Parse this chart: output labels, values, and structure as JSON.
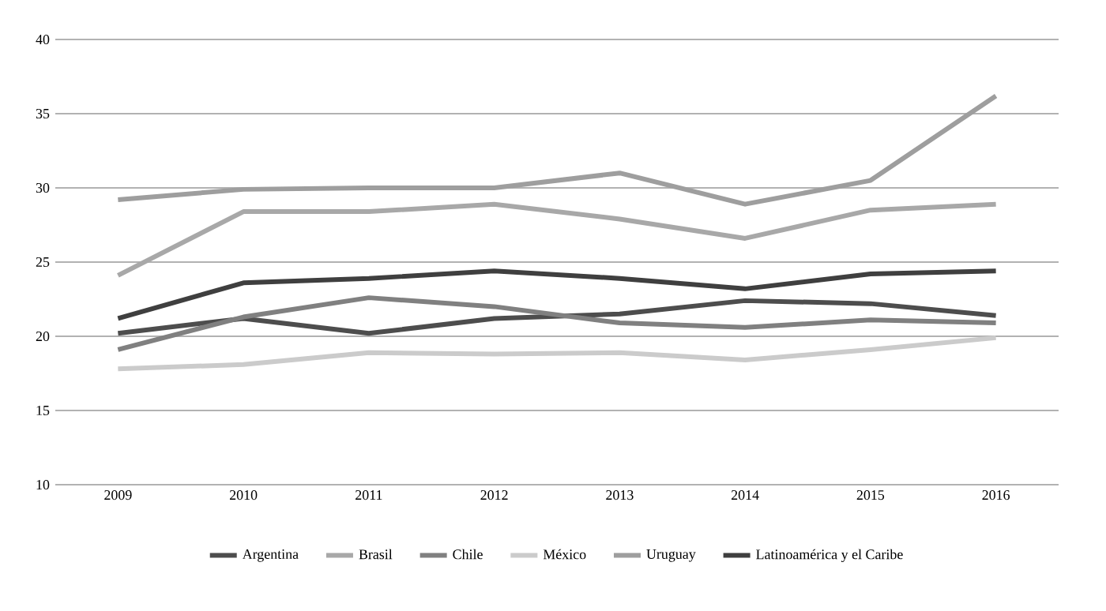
{
  "chart_data": {
    "type": "line",
    "categories": [
      "2009",
      "2010",
      "2011",
      "2012",
      "2013",
      "2014",
      "2015",
      "2016"
    ],
    "series": [
      {
        "name": "Argentina",
        "color": "#4d4d4d",
        "values": [
          20.2,
          21.2,
          20.2,
          21.2,
          21.5,
          22.4,
          22.2,
          21.4
        ]
      },
      {
        "name": "Brasil",
        "color": "#a8a8a8",
        "values": [
          24.1,
          28.4,
          28.4,
          28.9,
          27.9,
          26.6,
          28.5,
          28.9
        ]
      },
      {
        "name": "Chile",
        "color": "#808080",
        "values": [
          19.1,
          21.3,
          22.6,
          22.0,
          20.9,
          20.6,
          21.1,
          20.9
        ]
      },
      {
        "name": "México",
        "color": "#cbcbcb",
        "values": [
          17.8,
          18.1,
          18.9,
          18.8,
          18.9,
          18.4,
          19.1,
          19.9
        ]
      },
      {
        "name": "Uruguay",
        "color": "#9e9e9e",
        "values": [
          29.2,
          29.9,
          30.0,
          30.0,
          31.0,
          28.9,
          30.5,
          36.2
        ]
      },
      {
        "name": "Latinoamérica y el Caribe",
        "color": "#3f3f3f",
        "values": [
          21.2,
          23.6,
          23.9,
          24.4,
          23.9,
          23.2,
          24.2,
          24.4
        ]
      }
    ],
    "ylim": [
      10,
      40
    ],
    "yticks": [
      10,
      15,
      20,
      25,
      30,
      35,
      40
    ],
    "grid": "y",
    "legend": "bottom",
    "marker": "none",
    "line_style": "solid"
  }
}
